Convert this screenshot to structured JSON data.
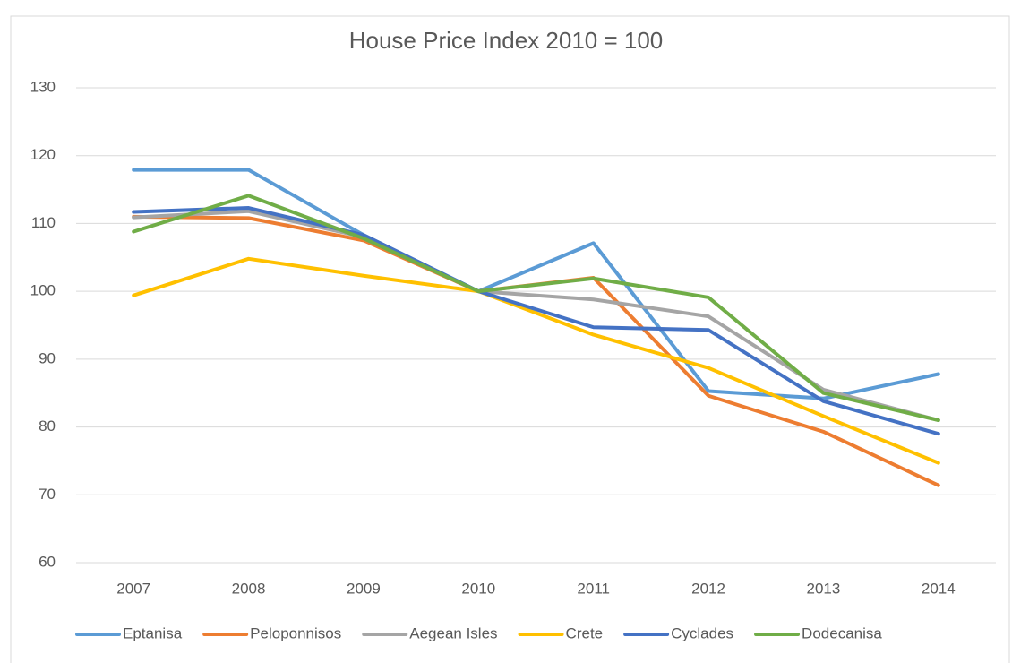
{
  "chart_data": {
    "type": "line",
    "title": "House Price Index 2010 = 100",
    "categories": [
      "2007",
      "2008",
      "2009",
      "2010",
      "2011",
      "2012",
      "2013",
      "2014"
    ],
    "series": [
      {
        "name": "Eptanisa",
        "color": "#5b9bd5",
        "values": [
          117.9,
          117.9,
          108.3,
          100,
          107.1,
          85.3,
          84.2,
          87.8
        ]
      },
      {
        "name": "Peloponnisos",
        "color": "#ed7d31",
        "values": [
          111,
          110.8,
          107.5,
          100,
          102,
          84.6,
          79.3,
          71.4
        ]
      },
      {
        "name": "Aegean Isles",
        "color": "#a5a5a5",
        "values": [
          110.9,
          111.8,
          108,
          100,
          98.8,
          96.3,
          85.5,
          81
        ]
      },
      {
        "name": "Crete",
        "color": "#ffc000",
        "values": [
          99.4,
          104.8,
          102.3,
          100,
          93.6,
          88.7,
          81.6,
          74.7
        ]
      },
      {
        "name": "Cyclades",
        "color": "#4472c4",
        "values": [
          111.7,
          112.3,
          108.3,
          100,
          94.7,
          94.3,
          83.8,
          79
        ]
      },
      {
        "name": "Dodecanisa",
        "color": "#70ad47",
        "values": [
          108.8,
          114.1,
          107.8,
          100,
          101.9,
          99.1,
          85,
          81
        ]
      }
    ],
    "ylim": [
      60,
      130
    ],
    "yticks": [
      60,
      70,
      80,
      90,
      100,
      110,
      120,
      130
    ],
    "grid": true,
    "legend": "bottom"
  }
}
